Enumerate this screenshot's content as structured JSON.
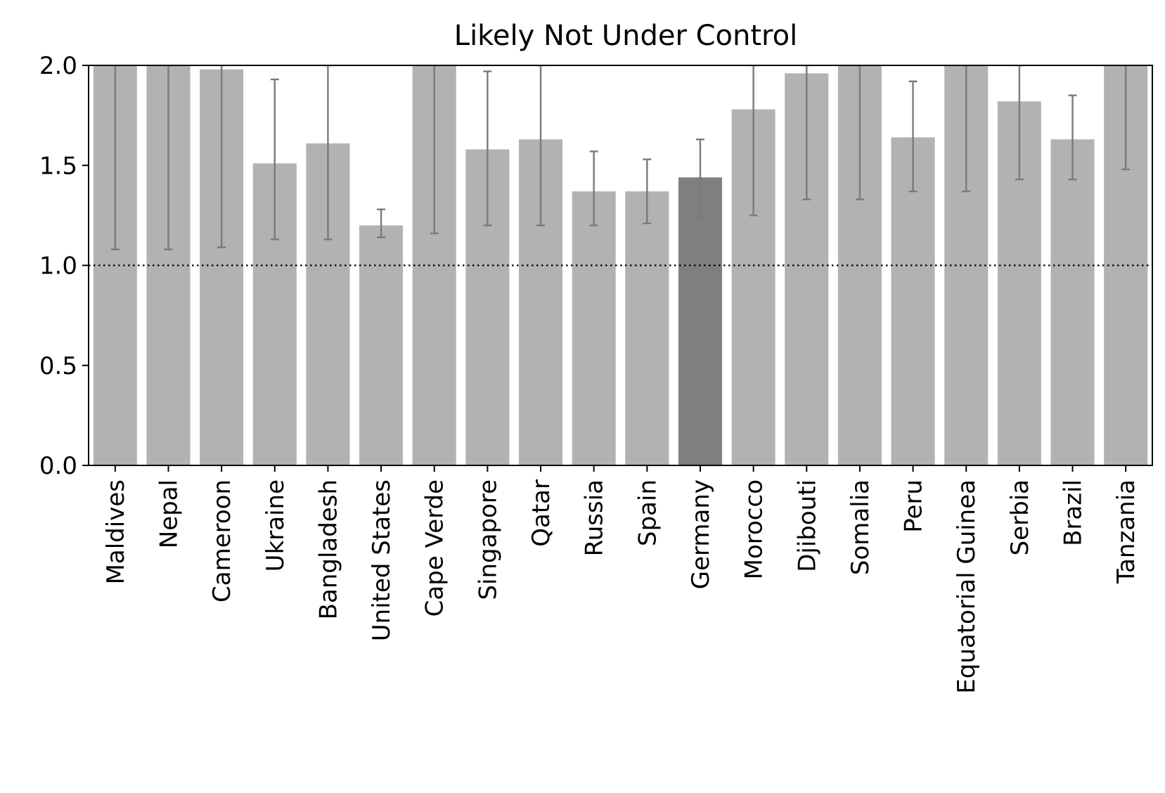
{
  "chart_data": {
    "type": "bar",
    "title": "Likely Not Under Control",
    "xlabel": "",
    "ylabel": "",
    "ylim": [
      0,
      2.0
    ],
    "yticks": [
      0.0,
      0.5,
      1.0,
      1.5,
      2.0
    ],
    "ytick_labels": [
      "0.0",
      "0.5",
      "1.0",
      "1.5",
      "2.0"
    ],
    "reference_line": {
      "y": 1.0,
      "style": "dotted",
      "color": "#000000"
    },
    "grid": false,
    "legend": "none",
    "colors": {
      "bar": "#b2b2b2",
      "highlight": "#7f7f7f",
      "error_bar": "#7a7a7a"
    },
    "highlight_category": "Germany",
    "categories": [
      "Maldives",
      "Nepal",
      "Cameroon",
      "Ukraine",
      "Bangladesh",
      "United States",
      "Cape Verde",
      "Singapore",
      "Qatar",
      "Russia",
      "Spain",
      "Germany",
      "Morocco",
      "Djibouti",
      "Somalia",
      "Peru",
      "Equatorial Guinea",
      "Serbia",
      "Brazil",
      "Tanzania"
    ],
    "values": [
      2.0,
      2.0,
      1.98,
      1.51,
      1.61,
      1.2,
      2.0,
      1.58,
      1.63,
      1.37,
      1.37,
      1.44,
      1.78,
      1.96,
      2.0,
      1.64,
      2.0,
      1.82,
      1.63,
      2.0
    ],
    "error_low": [
      1.08,
      1.08,
      1.09,
      1.13,
      1.13,
      1.14,
      1.16,
      1.2,
      1.2,
      1.2,
      1.21,
      1.24,
      1.25,
      1.33,
      1.33,
      1.37,
      1.37,
      1.43,
      1.43,
      1.48
    ],
    "error_high": [
      2.0,
      2.0,
      2.0,
      1.93,
      2.0,
      1.28,
      2.0,
      1.97,
      2.0,
      1.57,
      1.53,
      1.63,
      2.0,
      2.0,
      2.0,
      1.92,
      2.0,
      2.0,
      1.85,
      2.0
    ]
  }
}
